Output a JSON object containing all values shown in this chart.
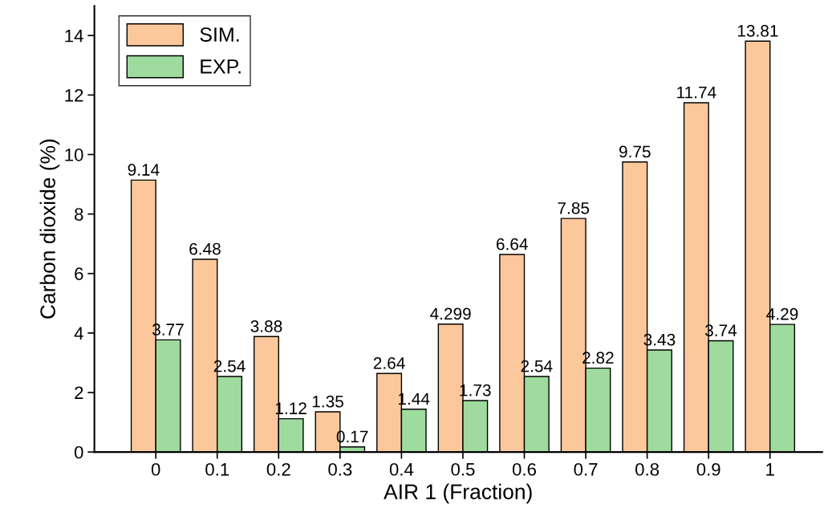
{
  "chart_data": {
    "type": "bar",
    "xlabel": "AIR 1 (Fraction)",
    "ylabel": "Carbon dioxide (%)",
    "categories": [
      "0",
      "0.1",
      "0.2",
      "0.3",
      "0.4",
      "0.5",
      "0.6",
      "0.7",
      "0.8",
      "0.9",
      "1"
    ],
    "series": [
      {
        "name": "SIM.",
        "color": "#fcc89b",
        "values": [
          9.14,
          6.48,
          3.88,
          1.35,
          2.64,
          4.299,
          6.64,
          7.85,
          9.75,
          11.74,
          13.81
        ]
      },
      {
        "name": "EXP.",
        "color": "#9fdb9f",
        "values": [
          3.77,
          2.54,
          1.12,
          0.17,
          1.44,
          1.73,
          2.54,
          2.82,
          3.43,
          3.74,
          4.29
        ]
      }
    ],
    "ylim": [
      0,
      15
    ],
    "yticks": [
      0,
      2,
      4,
      6,
      8,
      10,
      12,
      14
    ],
    "data_labels": true,
    "legend": "top left",
    "grid": false
  }
}
